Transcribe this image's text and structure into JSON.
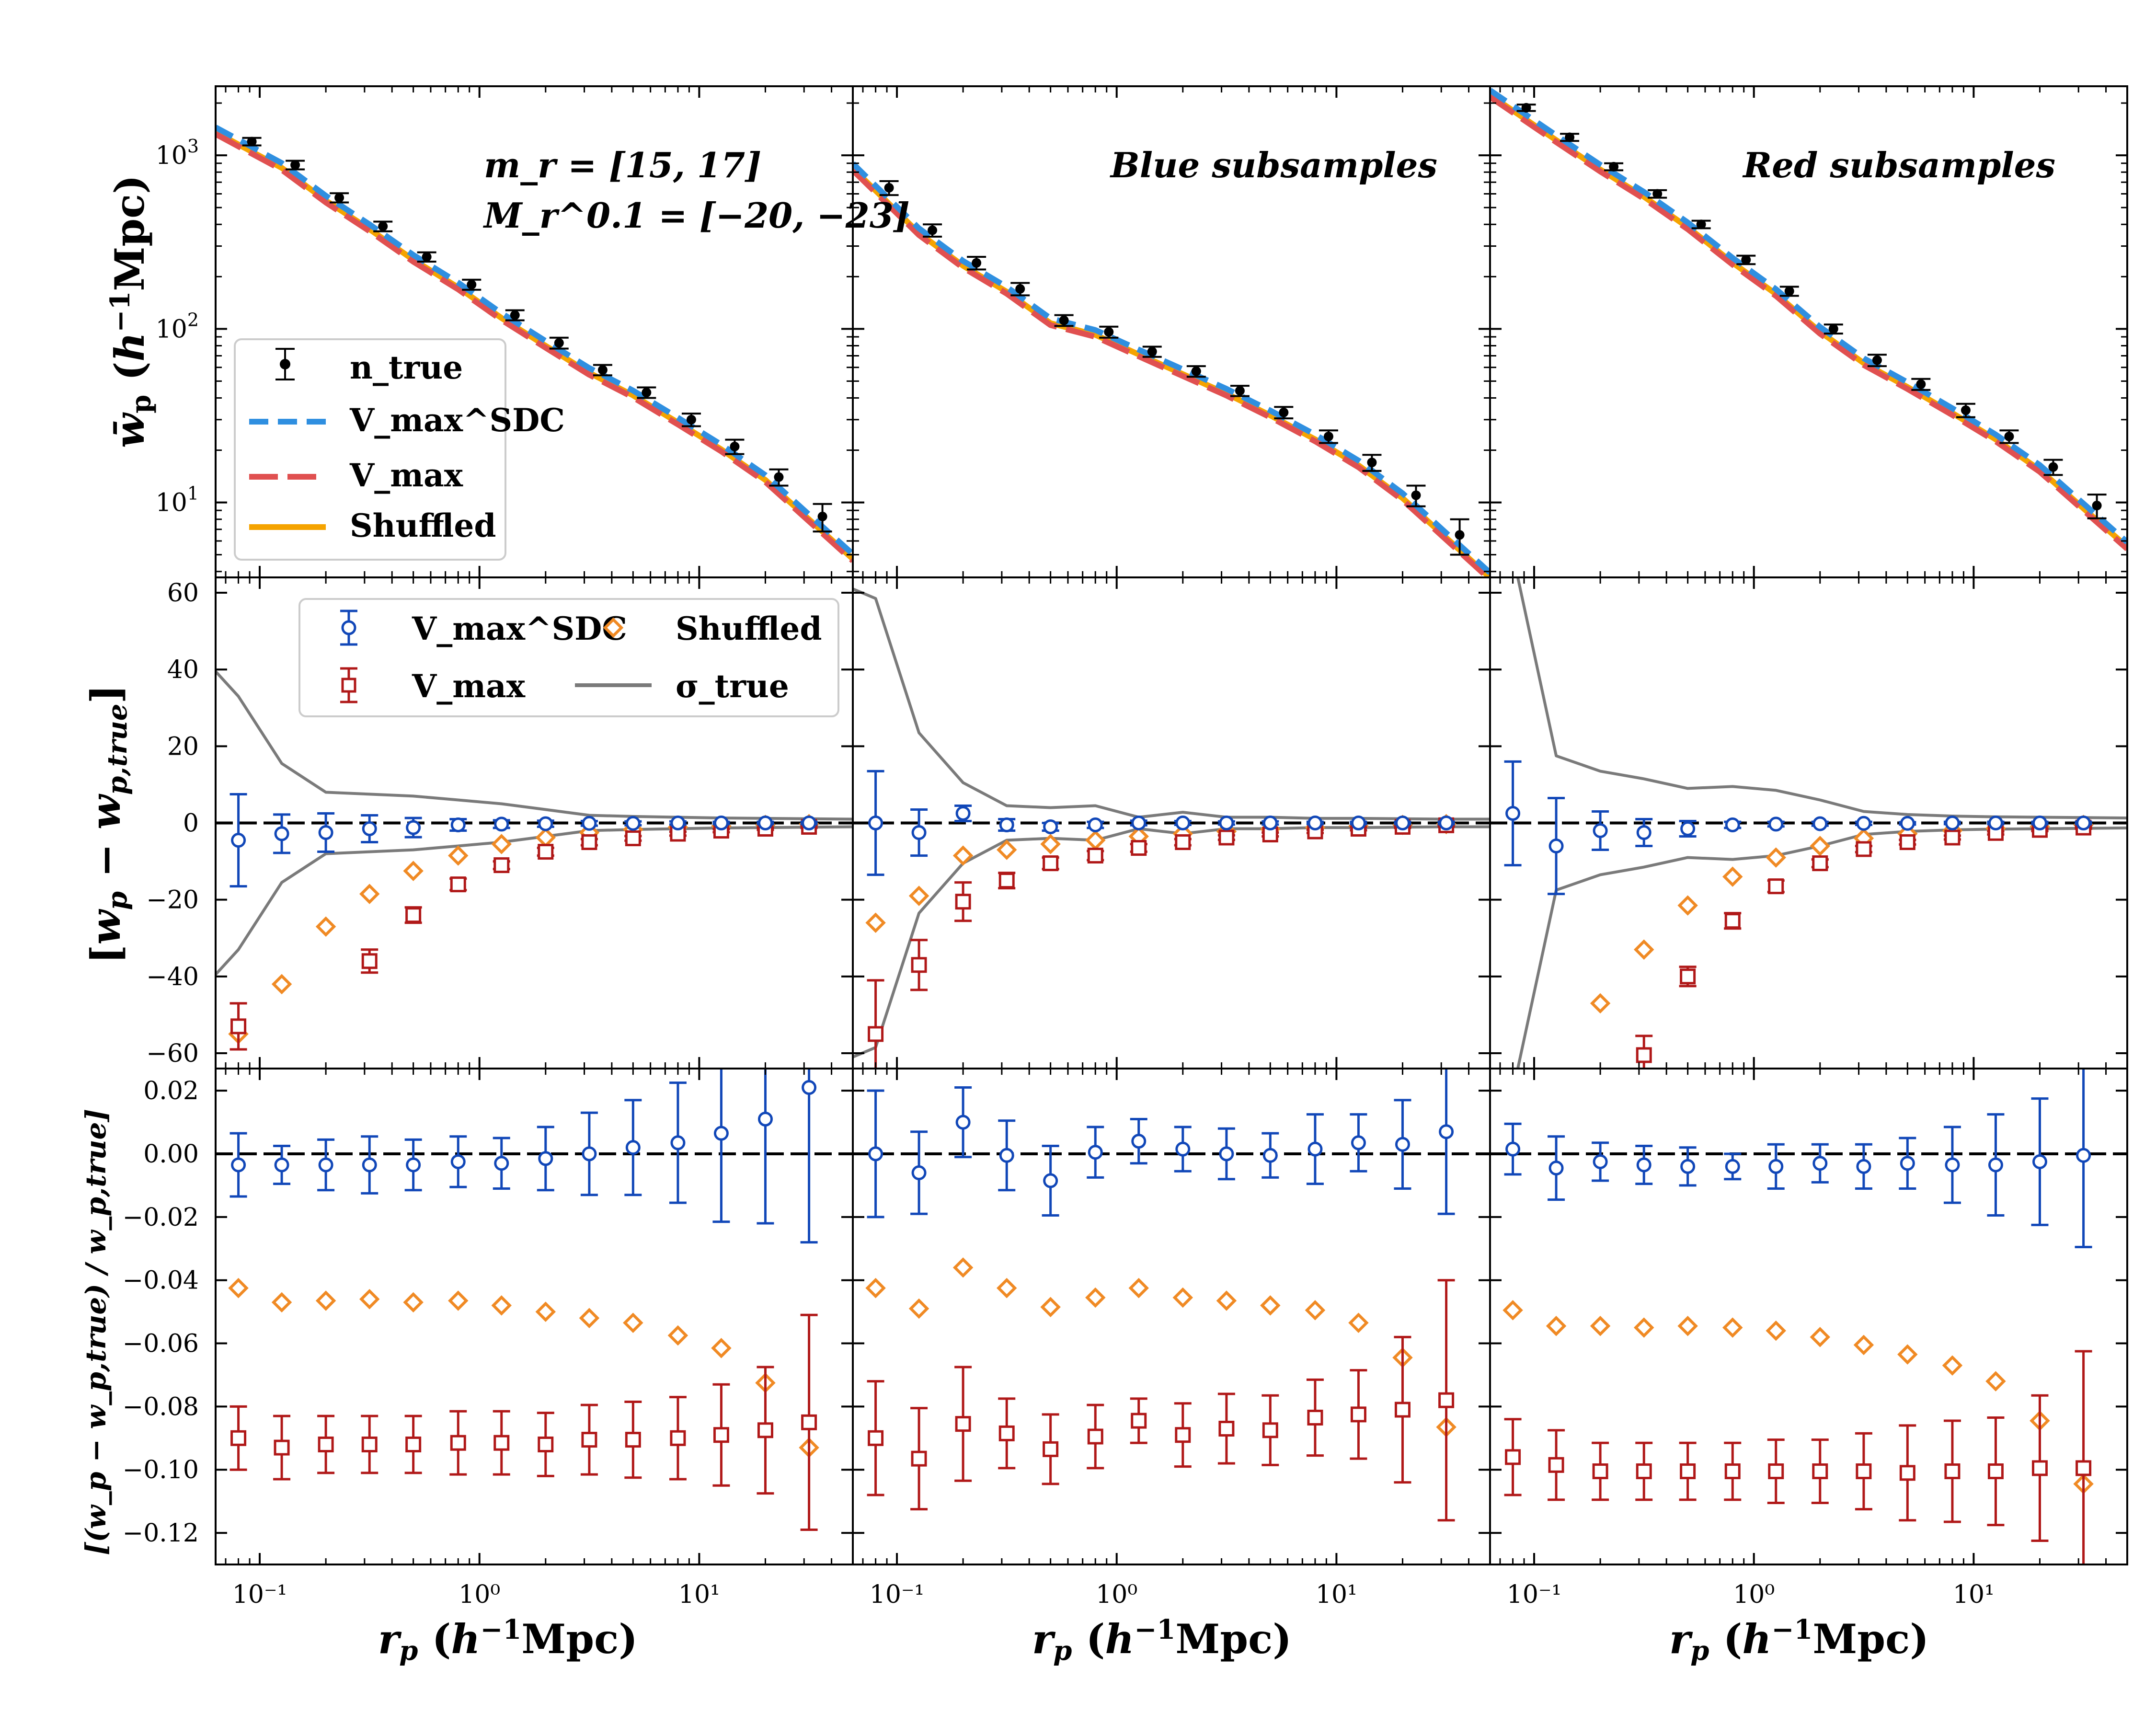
{
  "figure": {
    "annotation_line1": "m_r = [15, 17]",
    "annotation_line2": "M_r^0.1 = [−20, −23]",
    "column_titles": [
      "",
      "Blue subsamples",
      "Red subsamples"
    ],
    "xlabel": "r_p (h⁻¹Mpc)",
    "colors": {
      "true": "#000000",
      "sdc": "#2f8fe0",
      "sdc_marker": "#1147b8",
      "vmax": "#e05050",
      "vmax_marker": "#b01818",
      "shuffled": "#f5a300",
      "shuffled_marker": "#f08a24",
      "sigma": "#7a7a7a"
    }
  },
  "legend_top": {
    "ntrue": "n_true",
    "sdc": "V_max^SDC",
    "vmax": "V_max",
    "shuffled": "Shuffled"
  },
  "legend_mid": {
    "sdc": "V_max^SDC",
    "vmax": "V_max",
    "shuffled": "Shuffled",
    "sigma": "σ_true"
  },
  "chart_data": [
    {
      "type": "line",
      "panel": "top",
      "ylabel": "w̄_p (h⁻¹Mpc)",
      "xscale": "log",
      "yscale": "log",
      "xlim": [
        0.063,
        50
      ],
      "ylim": [
        3.7,
        2500
      ],
      "x": [
        0.08,
        0.126,
        0.2,
        0.316,
        0.5,
        0.8,
        1.26,
        2.0,
        3.16,
        5.0,
        8.0,
        12.6,
        20.0,
        31.6
      ],
      "columns": [
        {
          "subsample": "all",
          "n_true": [
            1200,
            880,
            570,
            390,
            260,
            180,
            120,
            83,
            58,
            43,
            30,
            21,
            14,
            8.3
          ],
          "n_true_err": [
            60,
            50,
            35,
            25,
            16,
            12,
            8,
            6,
            4,
            3,
            2.5,
            2,
            1.5,
            1.5
          ]
        },
        {
          "subsample": "blue",
          "n_true": [
            650,
            370,
            240,
            170,
            112,
            96,
            74,
            57,
            44,
            33,
            24,
            17,
            11,
            6.5
          ],
          "n_true_err": [
            60,
            30,
            20,
            14,
            8,
            7,
            5,
            4,
            3,
            2.5,
            2,
            1.8,
            1.5,
            1.5
          ]
        },
        {
          "subsample": "red",
          "n_true": [
            1880,
            1270,
            860,
            600,
            400,
            250,
            165,
            100,
            66,
            48,
            34,
            24,
            16,
            9.6
          ],
          "n_true_err": [
            80,
            60,
            40,
            30,
            20,
            14,
            10,
            6,
            5,
            3.5,
            3,
            2,
            1.6,
            1.5
          ]
        }
      ]
    },
    {
      "type": "scatter",
      "panel": "middle",
      "ylabel": "[w_p − w_p,true]",
      "xscale": "log",
      "xlim": [
        0.063,
        50
      ],
      "ylim": [
        -64,
        64
      ],
      "yticks": [
        -60,
        -40,
        -20,
        0,
        20,
        40,
        60
      ],
      "x": [
        0.08,
        0.126,
        0.2,
        0.316,
        0.5,
        0.8,
        1.26,
        2.0,
        3.16,
        5.0,
        8.0,
        12.6,
        20.0,
        31.6
      ],
      "columns": [
        {
          "subsample": "all",
          "sdc": [
            -4.5,
            -2.8,
            -2.5,
            -1.5,
            -1.2,
            -0.5,
            -0.3,
            -0.2,
            -0.1,
            -0.1,
            0,
            0,
            0,
            0
          ],
          "sdc_err": [
            12,
            5,
            5,
            3.5,
            2.5,
            1.5,
            1,
            0.8,
            0.6,
            0.5,
            0.4,
            0.3,
            0.3,
            0.3
          ],
          "vmax": [
            -53,
            null,
            null,
            -36,
            -24,
            -16,
            -11,
            -7.5,
            -5,
            -4,
            -2.8,
            -2,
            -1.5,
            -1
          ],
          "vmax_err": [
            6,
            null,
            null,
            3,
            2,
            1.5,
            1,
            1,
            0.8,
            0.6,
            0.5,
            0.4,
            0.3,
            0.3
          ],
          "shuffled": [
            -55,
            -42,
            -27,
            -18.5,
            -12.5,
            -8.5,
            -5.5,
            -3.8,
            -2.5,
            -1.7,
            -1.1,
            -0.8,
            -0.5,
            -0.3
          ],
          "sigma_x": [
            0.063,
            0.08,
            0.126,
            0.2,
            0.316,
            0.5,
            0.8,
            1.26,
            2.0,
            3.16,
            5.0,
            8.0,
            12.6,
            20.0,
            31.6,
            50
          ],
          "sigma": [
            39.5,
            33,
            15.5,
            8,
            7.5,
            7,
            6,
            5,
            3.5,
            2,
            1.7,
            1.5,
            1.3,
            1.2,
            1.1,
            1.0
          ]
        },
        {
          "subsample": "blue",
          "sdc": [
            0,
            -2.5,
            2.5,
            -0.5,
            -1,
            -0.5,
            0,
            0,
            0,
            0,
            0,
            0,
            0,
            0
          ],
          "sdc_err": [
            13.5,
            6,
            2,
            1.5,
            1,
            0.8,
            0.6,
            0.5,
            0.4,
            0.4,
            0.3,
            0.3,
            0.3,
            0.3
          ],
          "vmax": [
            -55,
            -37,
            -20.5,
            -15,
            -10.5,
            -8.5,
            -6.5,
            -5,
            -3.8,
            -3,
            -2.2,
            -1.5,
            -1,
            -0.6
          ],
          "vmax_err": [
            14,
            6.5,
            5,
            2,
            1.5,
            1.2,
            1,
            0.8,
            0.6,
            0.5,
            0.4,
            0.4,
            0.3,
            0.3
          ],
          "shuffled": [
            -26,
            -19,
            -8.5,
            -7,
            -5.5,
            -4.5,
            -3.5,
            -2.8,
            -2.2,
            -1.6,
            -1.2,
            -0.8,
            -0.5,
            -0.3
          ],
          "sigma_x": [
            0.063,
            0.08,
            0.126,
            0.2,
            0.316,
            0.5,
            0.8,
            1.26,
            2.0,
            3.16,
            5.0,
            8.0,
            12.6,
            20.0,
            31.6,
            50
          ],
          "sigma": [
            61,
            58.5,
            23.5,
            10.5,
            4.5,
            4,
            4.5,
            1.5,
            2.8,
            1.5,
            1.5,
            1.2,
            1.2,
            1.1,
            1.0,
            1.0
          ]
        },
        {
          "subsample": "red",
          "sdc": [
            2.5,
            -6,
            -2,
            -2.5,
            -1.5,
            -0.5,
            -0.3,
            -0.2,
            -0.1,
            -0.1,
            0,
            0,
            0,
            0
          ],
          "sdc_err": [
            13.5,
            12.5,
            5,
            3.5,
            2,
            0.8,
            0.6,
            0.5,
            0.4,
            0.3,
            0.3,
            0.3,
            0.3,
            0.3
          ],
          "vmax": [
            null,
            null,
            null,
            -60.5,
            -40,
            -25.5,
            -16.5,
            -10.5,
            -6.8,
            -5,
            -3.8,
            -2.6,
            -1.8,
            -1.2
          ],
          "vmax_err": [
            null,
            null,
            null,
            5,
            2.5,
            2,
            1.5,
            1,
            0.8,
            0.6,
            0.5,
            0.4,
            0.3,
            0.3
          ],
          "shuffled": [
            null,
            null,
            -47,
            -33,
            -21.5,
            -14,
            -9,
            -6,
            -4,
            -2.8,
            -2,
            -1.4,
            -0.9,
            -0.5
          ],
          "sigma_x": [
            0.08,
            0.126,
            0.2,
            0.316,
            0.5,
            0.8,
            1.26,
            2.0,
            3.16,
            5.0,
            8.0,
            12.6,
            20.0,
            31.6,
            50
          ],
          "sigma": [
            70,
            17.5,
            13.5,
            11.5,
            9,
            9.5,
            8.5,
            6,
            3,
            2.2,
            1.8,
            1.6,
            1.5,
            1.4,
            1.3
          ]
        }
      ]
    },
    {
      "type": "scatter",
      "panel": "bottom",
      "ylabel": "[(w_p − w_p,true) / w_p,true]",
      "xscale": "log",
      "xlim": [
        0.063,
        50
      ],
      "ylim": [
        -0.13,
        0.027
      ],
      "yticks": [
        -0.12,
        -0.1,
        -0.08,
        -0.06,
        -0.04,
        -0.02,
        0.0,
        0.02
      ],
      "ytick_labels": [
        "−0.12",
        "−0.10",
        "−0.08",
        "−0.06",
        "−0.04",
        "−0.02",
        "0.00",
        "0.02"
      ],
      "xticks": [
        0.1,
        1,
        10
      ],
      "xtick_labels": [
        "10⁻¹",
        "10⁰",
        "10¹"
      ],
      "x": [
        0.08,
        0.126,
        0.2,
        0.316,
        0.5,
        0.8,
        1.26,
        2.0,
        3.16,
        5.0,
        8.0,
        12.6,
        20.0,
        31.6
      ],
      "columns": [
        {
          "subsample": "all",
          "sdc": [
            -0.0035,
            -0.0035,
            -0.0035,
            -0.0035,
            -0.0035,
            -0.0025,
            -0.003,
            -0.0015,
            0,
            0.002,
            0.0035,
            0.0065,
            0.011,
            0.021
          ],
          "sdc_err": [
            0.01,
            0.006,
            0.008,
            0.009,
            0.008,
            0.008,
            0.008,
            0.01,
            0.013,
            0.015,
            0.019,
            0.028,
            0.033,
            0.049
          ],
          "vmax": [
            -0.09,
            -0.093,
            -0.092,
            -0.092,
            -0.092,
            -0.0915,
            -0.0915,
            -0.092,
            -0.0905,
            -0.0905,
            -0.09,
            -0.089,
            -0.0875,
            -0.085
          ],
          "vmax_err": [
            0.01,
            0.01,
            0.009,
            0.009,
            0.009,
            0.01,
            0.01,
            0.01,
            0.011,
            0.012,
            0.013,
            0.016,
            0.02,
            0.034
          ],
          "shuffled": [
            -0.0425,
            -0.047,
            -0.0465,
            -0.046,
            -0.047,
            -0.0465,
            -0.048,
            -0.05,
            -0.052,
            -0.0535,
            -0.0575,
            -0.0615,
            -0.0725,
            -0.093
          ]
        },
        {
          "subsample": "blue",
          "sdc": [
            0,
            -0.006,
            0.01,
            -0.0005,
            -0.0085,
            0.0005,
            0.004,
            0.0015,
            0,
            -0.0005,
            0.0015,
            0.0035,
            0.003,
            0.007
          ],
          "sdc_err": [
            0.02,
            0.013,
            0.011,
            0.011,
            0.011,
            0.008,
            0.007,
            0.007,
            0.008,
            0.007,
            0.011,
            0.009,
            0.014,
            0.026
          ],
          "vmax": [
            -0.09,
            -0.0965,
            -0.0855,
            -0.0885,
            -0.0935,
            -0.0895,
            -0.0845,
            -0.089,
            -0.087,
            -0.0875,
            -0.0835,
            -0.0825,
            -0.081,
            -0.078
          ],
          "vmax_err": [
            0.018,
            0.016,
            0.018,
            0.011,
            0.011,
            0.01,
            0.007,
            0.01,
            0.011,
            0.011,
            0.012,
            0.014,
            0.023,
            0.038
          ],
          "shuffled": [
            -0.0425,
            -0.049,
            -0.036,
            -0.0425,
            -0.0485,
            -0.0455,
            -0.0425,
            -0.0455,
            -0.0465,
            -0.048,
            -0.0495,
            -0.0535,
            -0.0645,
            -0.0865
          ]
        },
        {
          "subsample": "red",
          "sdc": [
            0.0015,
            -0.0045,
            -0.0025,
            -0.0035,
            -0.004,
            -0.004,
            -0.004,
            -0.003,
            -0.004,
            -0.003,
            -0.0035,
            -0.0035,
            -0.0025,
            -0.0005
          ],
          "sdc_err": [
            0.008,
            0.01,
            0.006,
            0.006,
            0.006,
            0.004,
            0.007,
            0.006,
            0.007,
            0.008,
            0.012,
            0.016,
            0.02,
            0.029
          ],
          "vmax": [
            -0.096,
            -0.0985,
            -0.1005,
            -0.1005,
            -0.1005,
            -0.1005,
            -0.1005,
            -0.1005,
            -0.1005,
            -0.101,
            -0.1005,
            -0.1005,
            -0.0995,
            -0.0995
          ],
          "vmax_err": [
            0.012,
            0.011,
            0.009,
            0.009,
            0.009,
            0.009,
            0.01,
            0.01,
            0.012,
            0.015,
            0.016,
            0.017,
            0.023,
            0.037
          ],
          "shuffled": [
            -0.0495,
            -0.0545,
            -0.0545,
            -0.055,
            -0.0545,
            -0.055,
            -0.056,
            -0.058,
            -0.0605,
            -0.0635,
            -0.067,
            -0.072,
            -0.0845,
            -0.1045
          ]
        }
      ]
    }
  ]
}
